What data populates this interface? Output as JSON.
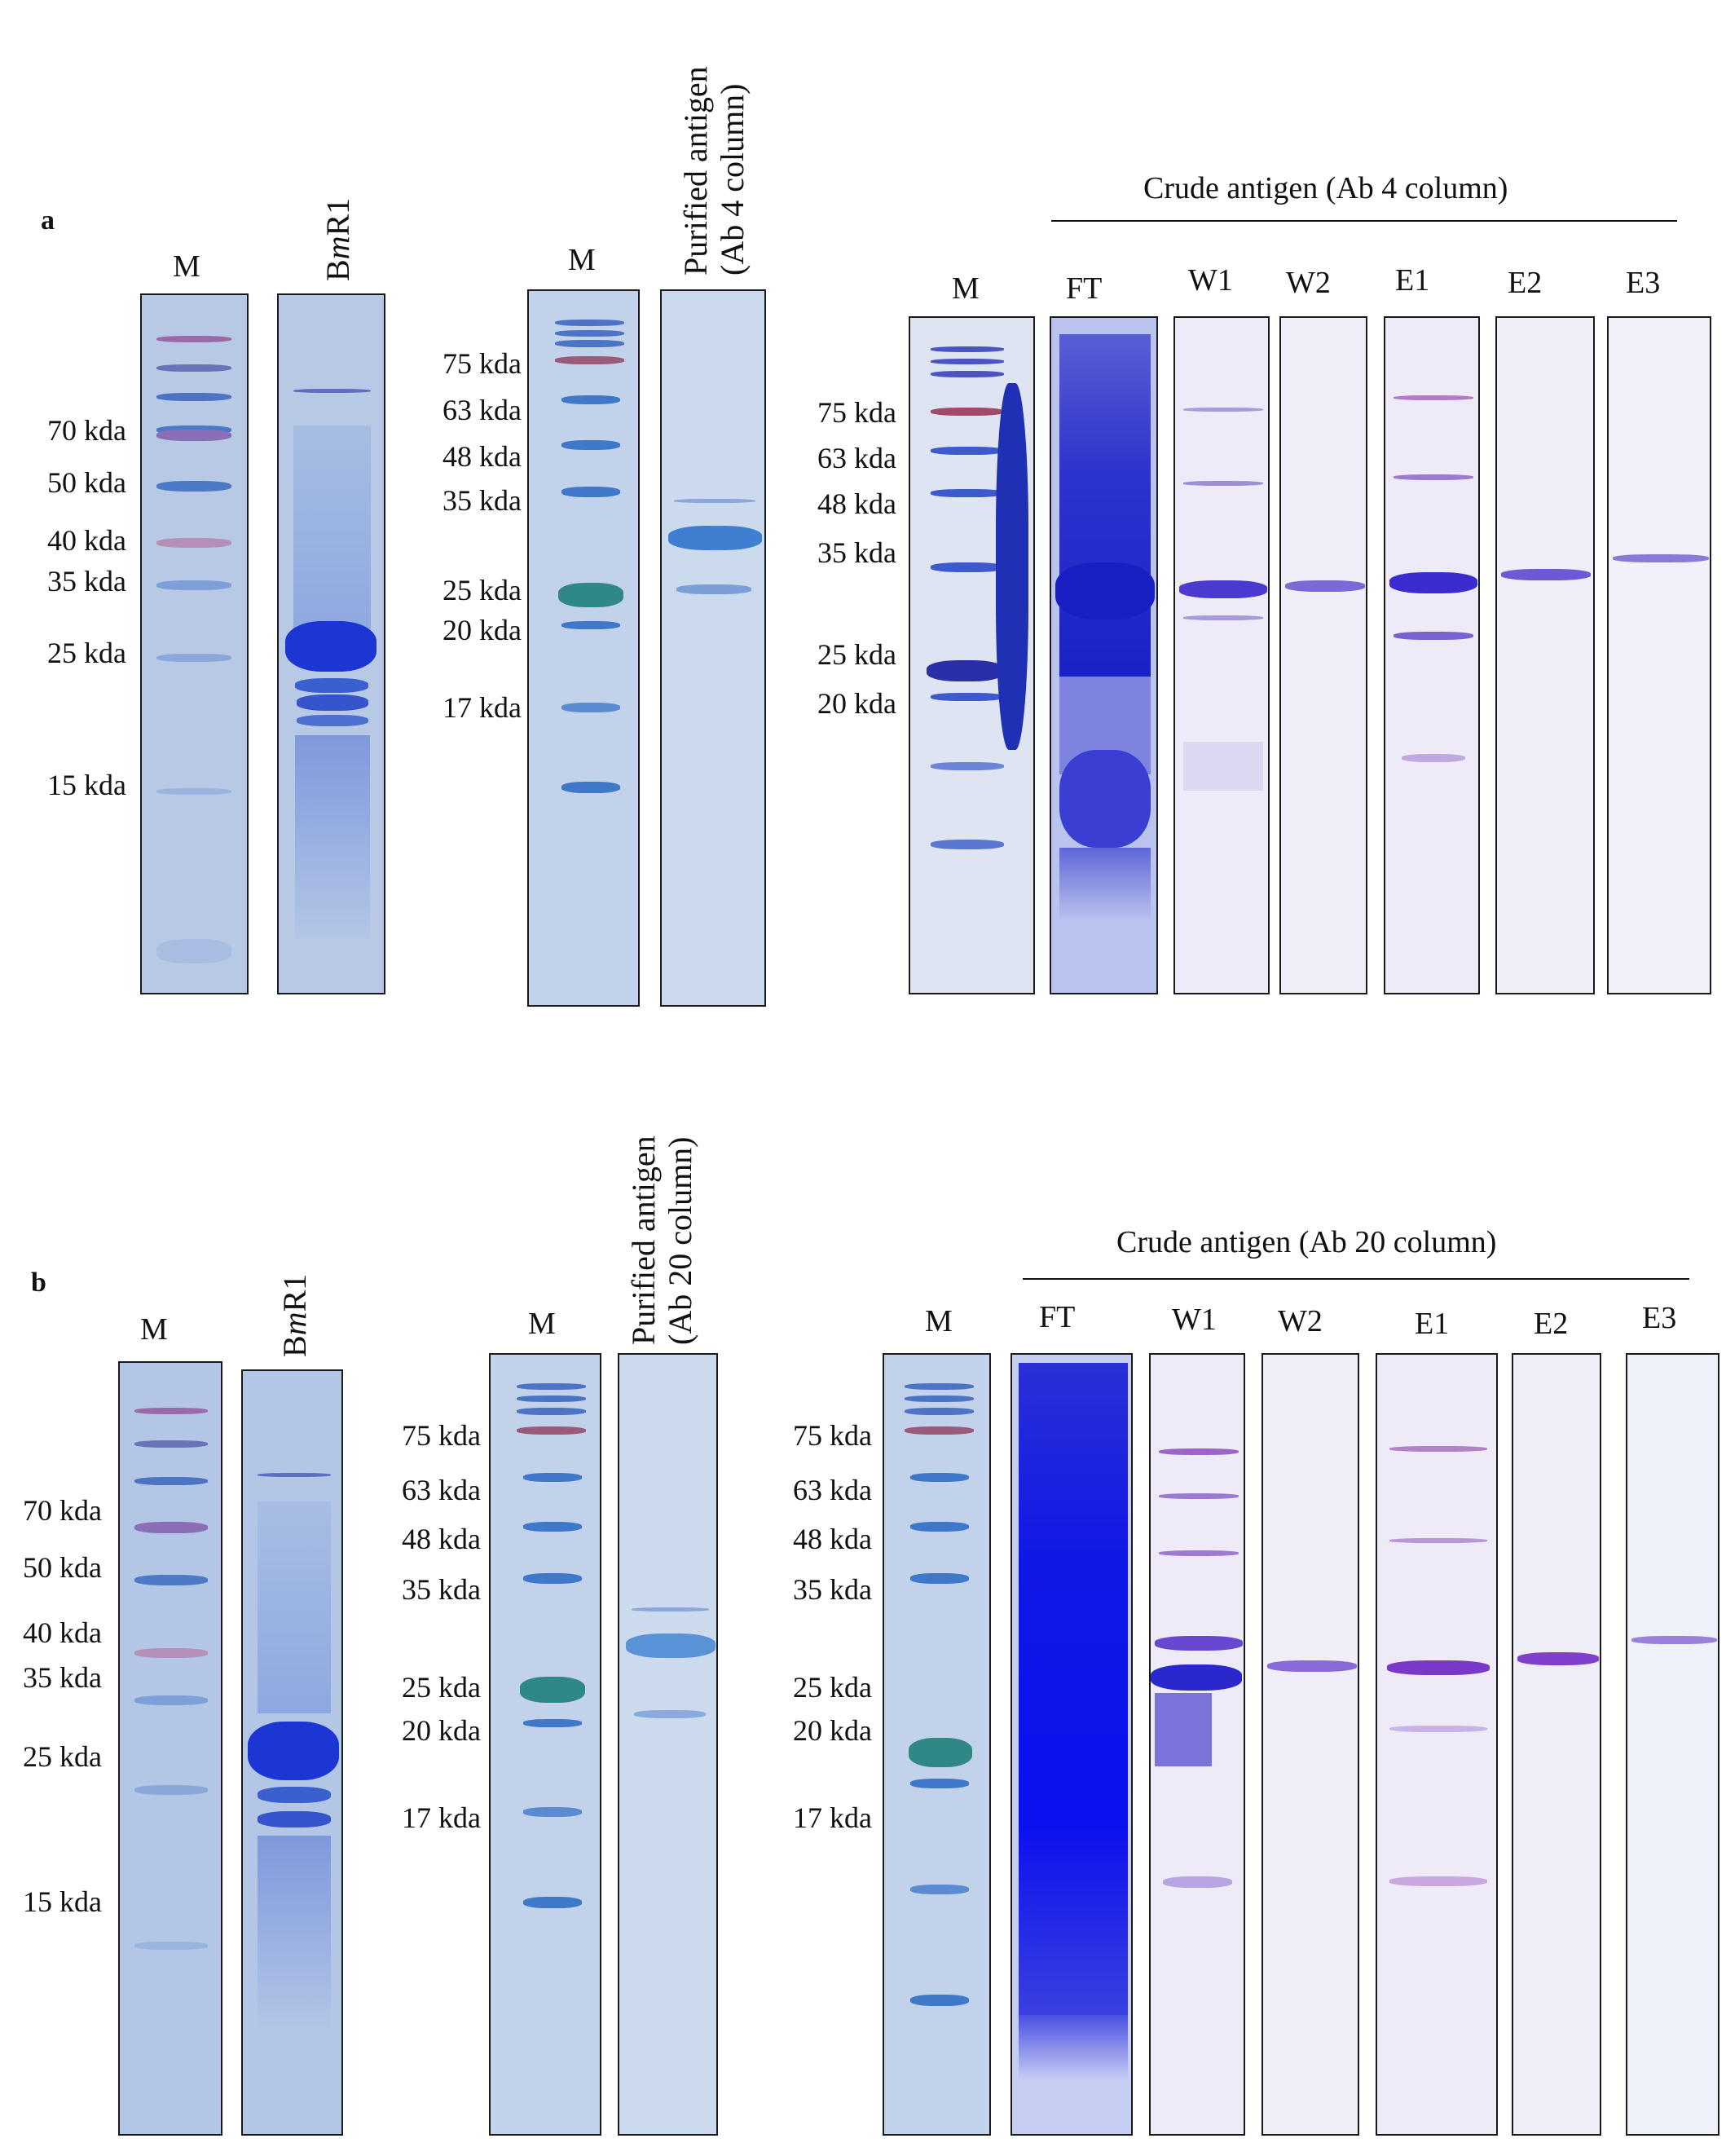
{
  "panel_a": {
    "letter": "a",
    "gel1": {
      "lane_labels": {
        "marker": "M",
        "sample_prefix": "B",
        "sample_italic": "m",
        "sample_suffix": "R1"
      },
      "mw_labels": [
        "70 kda",
        "50 kda",
        "40 kda",
        "35 kda",
        "25 kda",
        "15 kda"
      ]
    },
    "gel2": {
      "marker_label": "M",
      "sample_label_line1": "Purified antigen",
      "sample_label_line2": "(Ab 4 column)",
      "mw_labels": [
        "75 kda",
        "63 kda",
        "48 kda",
        "35 kda",
        "25 kda",
        "20 kda",
        "17 kda"
      ]
    },
    "gel3": {
      "group_title": "Crude antigen  (Ab 4 column)",
      "lane_labels": [
        "M",
        "FT",
        "W1",
        "W2",
        "E1",
        "E2",
        "E3"
      ],
      "mw_labels": [
        "75 kda",
        "63 kda",
        "48 kda",
        "35 kda",
        "25 kda",
        "20 kda"
      ]
    }
  },
  "panel_b": {
    "letter": "b",
    "gel1": {
      "lane_labels": {
        "marker": "M",
        "sample_prefix": "B",
        "sample_italic": "m",
        "sample_suffix": "R1"
      },
      "mw_labels": [
        "70 kda",
        "50 kda",
        "40 kda",
        "35 kda",
        "25 kda",
        "15 kda"
      ]
    },
    "gel2": {
      "marker_label": "M",
      "sample_label_line1": "Purified antigen",
      "sample_label_line2": "(Ab 20 column)",
      "mw_labels": [
        "75 kda",
        "63 kda",
        "48 kda",
        "35 kda",
        "25 kda",
        "20 kda",
        "17 kda"
      ]
    },
    "gel3": {
      "group_title": "Crude antigen  (Ab 20 column)",
      "lane_labels": [
        "M",
        "FT",
        "W1",
        "W2",
        "E1",
        "E2",
        "E3"
      ],
      "mw_labels": [
        "75 kda",
        "63 kda",
        "48 kda",
        "35 kda",
        "25 kda",
        "20 kda",
        "17 kda"
      ]
    }
  },
  "colors": {
    "coomassie_bg": "#b9cbe6",
    "marker_band": "#3b78c8",
    "marker_red": "#b0506a",
    "marker_green": "#2f8a86",
    "strong_band": "#1f2fd6",
    "violet_band": "#7a3fd0",
    "western_bg": "#eceaf6"
  }
}
